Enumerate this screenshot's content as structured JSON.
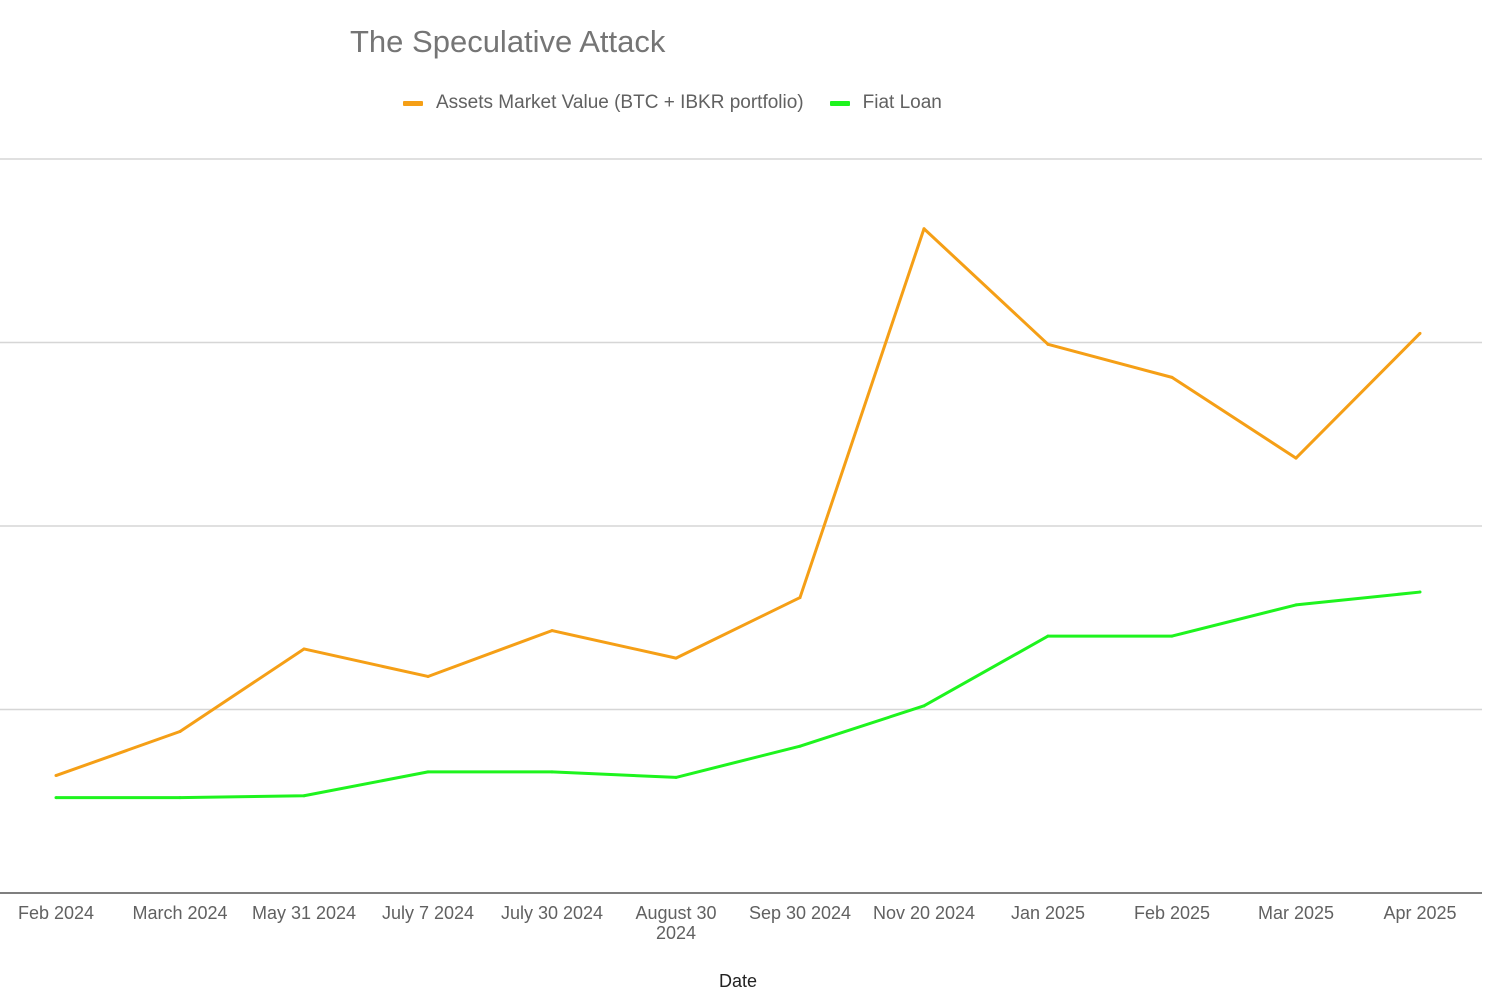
{
  "chart_data": {
    "type": "line",
    "title": "The Speculative Attack",
    "xlabel": "Date",
    "ylabel": "",
    "categories": [
      "Feb 2024",
      "March 2024",
      "May 31 2024",
      "July 7 2024",
      "July 30 2024",
      "August 30 2024",
      "Sep 30 2024",
      "Nov 20 2024",
      "Jan 2025",
      "Feb 2025",
      "Mar 2025",
      "Apr 2025"
    ],
    "series": [
      {
        "name": "Assets Market Value (BTC + IBKR portfolio)",
        "color": "#f59f16",
        "values": [
          0.64,
          0.88,
          1.33,
          1.18,
          1.43,
          1.28,
          1.61,
          3.62,
          2.99,
          2.81,
          2.37,
          3.05
        ]
      },
      {
        "name": "Fiat Loan",
        "color": "#1ef41e",
        "values": [
          0.52,
          0.52,
          0.53,
          0.66,
          0.66,
          0.63,
          0.8,
          1.02,
          1.4,
          1.4,
          1.57,
          1.64
        ]
      }
    ],
    "ylim": [
      0,
      4
    ],
    "gridlines": [
      1,
      2,
      3,
      4
    ],
    "grid": true,
    "y_tick_labels_shown": false,
    "legend_position": "top-center"
  }
}
